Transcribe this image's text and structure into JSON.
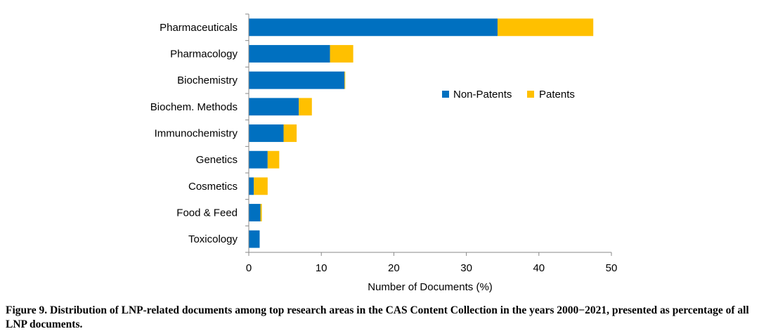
{
  "chart_data": {
    "type": "bar",
    "orientation": "horizontal",
    "stacked": true,
    "categories": [
      "Pharmaceuticals",
      "Pharmacology",
      "Biochemistry",
      "Biochem. Methods",
      "Immunochemistry",
      "Genetics",
      "Cosmetics",
      "Food & Feed",
      "Toxicology"
    ],
    "series": [
      {
        "name": "Non-Patents",
        "color": "#0070C0",
        "values": [
          34.3,
          11.2,
          13.2,
          6.9,
          4.8,
          2.6,
          0.7,
          1.6,
          1.5
        ]
      },
      {
        "name": "Patents",
        "color": "#FFC000",
        "values": [
          13.2,
          3.2,
          0.1,
          1.8,
          1.8,
          1.6,
          1.9,
          0.2,
          0.0
        ]
      }
    ],
    "xlabel": "Number of Documents (%)",
    "ylabel": "",
    "xlim": [
      0,
      50
    ],
    "xticks": [
      "0",
      "10",
      "20",
      "30",
      "40",
      "50"
    ],
    "grid": false,
    "legend_position": "center-right"
  },
  "caption": "Figure 9. Distribution of LNP-related documents among top research areas in the CAS Content Collection in the years 2000−2021, presented as percentage of all LNP documents."
}
